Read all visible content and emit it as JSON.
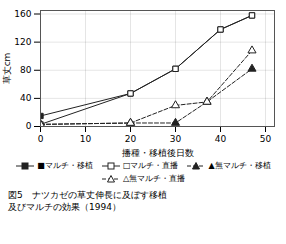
{
  "chart_data": {
    "type": "line",
    "xlabel": "播種・移植後日数",
    "ylabel": "草丈cm",
    "caption": [
      "図5　ナツカゼの草丈伸長に及ぼす移植",
      "及びマルチの効果（1994）"
    ],
    "xlim": [
      0,
      52
    ],
    "ylim": [
      0,
      165
    ],
    "xticks": [
      0,
      10,
      20,
      30,
      40,
      50
    ],
    "yticks": [
      0,
      40,
      80,
      120,
      160
    ],
    "grid": true,
    "legend": "bottom",
    "series": [
      {
        "name": "■マルチ・移植",
        "x": [
          0,
          20,
          30,
          40,
          47
        ],
        "values": [
          15,
          47,
          82,
          138,
          158
        ],
        "color": "#222222",
        "line_style": "solid",
        "marker": "filled_square"
      },
      {
        "name": "□マルチ・直播",
        "x": [
          0,
          20,
          30,
          40,
          47
        ],
        "values": [
          3,
          47,
          82,
          138,
          158
        ],
        "color": "#222222",
        "line_style": "solid",
        "marker": "open_square"
      },
      {
        "name": "▲無マルチ・移植",
        "x": [
          0,
          20,
          30,
          37,
          47
        ],
        "values": [
          3,
          5,
          5,
          35,
          82
        ],
        "color": "#222222",
        "line_style": "dashed",
        "marker": "filled_triangle"
      },
      {
        "name": "△無マルチ・直播",
        "x": [
          0,
          20,
          30,
          37,
          47
        ],
        "values": [
          3,
          5,
          30,
          35,
          108
        ],
        "color": "#222222",
        "line_style": "dashed",
        "marker": "open_triangle"
      }
    ]
  }
}
